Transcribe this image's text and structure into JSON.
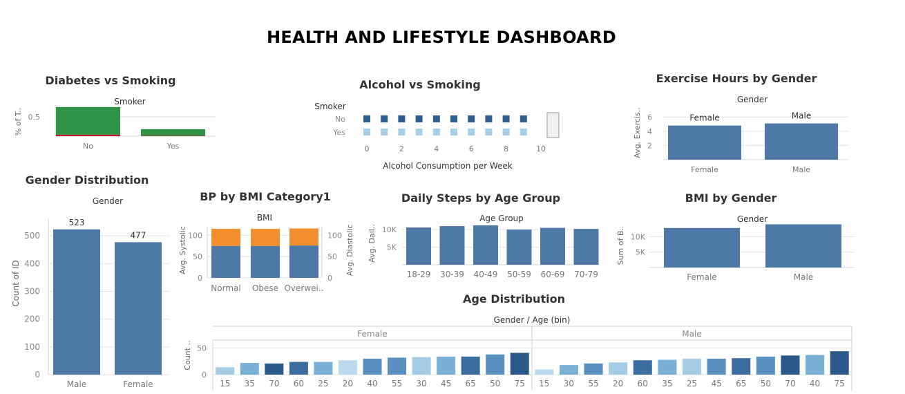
{
  "dashboard": {
    "title": "HEALTH AND LIFESTYLE DASHBOARD"
  },
  "colors": {
    "blue": "#4e79a7",
    "green": "#2e9445",
    "red": "#c8102e",
    "orange": "#f28e2b",
    "smoker_no": "#2e5d8e",
    "smoker_yes": "#a5cfe8",
    "age_palette": [
      "#bcdaef",
      "#a5cde6",
      "#7ab0d6",
      "#5a91c0",
      "#3b6e9f",
      "#2b5a8a"
    ]
  },
  "chart_data": [
    {
      "id": "diabetes_smoking",
      "type": "bar",
      "title": "Diabetes vs Smoking",
      "header": "Smoker",
      "ylabel": "% of T..",
      "ylim": [
        0,
        0.8
      ],
      "yticks": [
        "0.5"
      ],
      "categories": [
        "No",
        "Yes"
      ],
      "series": [
        {
          "values": [
            0.04,
            0.01
          ],
          "color": "#c8102e"
        },
        {
          "values": [
            0.71,
            0.17
          ],
          "color": "#2e9445"
        }
      ]
    },
    {
      "id": "alcohol_smoking",
      "type": "scatter",
      "title": "Alcohol vs Smoking",
      "row_header": "Smoker",
      "rows": [
        "No",
        "Yes"
      ],
      "xlabel": "Alcohol Consumption per Week",
      "xlim": [
        0,
        10
      ],
      "xticks": [
        "0",
        "2",
        "4",
        "6",
        "8",
        "10"
      ],
      "series": [
        {
          "name": "No",
          "x": [
            0,
            1,
            2,
            3,
            4,
            5,
            6,
            7,
            8,
            9
          ],
          "color": "#2e5d8e"
        },
        {
          "name": "Yes",
          "x": [
            0,
            1,
            2,
            3,
            4,
            5,
            6,
            7,
            8,
            9
          ],
          "color": "#a5cfe8"
        }
      ]
    },
    {
      "id": "exercise_gender",
      "type": "bar",
      "title": "Exercise Hours by Gender",
      "header": "Gender",
      "ylabel": "Avg. Exercis..",
      "ylim": [
        0,
        7
      ],
      "yticks": [
        "2",
        "4",
        "6"
      ],
      "categories": [
        "Female",
        "Male"
      ],
      "values": [
        4.8,
        5.1
      ],
      "data_labels": [
        "Female",
        "Male"
      ]
    },
    {
      "id": "gender_distribution",
      "type": "bar",
      "title": "Gender Distribution",
      "header": "Gender",
      "ylabel": "Count of ID",
      "ylim": [
        0,
        560
      ],
      "yticks": [
        "0",
        "100",
        "200",
        "300",
        "400",
        "500"
      ],
      "categories": [
        "Male",
        "Female"
      ],
      "values": [
        523,
        477
      ],
      "data_labels": [
        "523",
        "477"
      ]
    },
    {
      "id": "bp_bmi",
      "type": "bar",
      "title": "BP by BMI Category1",
      "header": "BMI",
      "ylabel_left": "Avg. Systolic",
      "ylabel_right": "Avg. Diastolic",
      "ylim": [
        0,
        120
      ],
      "yticks": [
        "0",
        "50",
        "100"
      ],
      "categories": [
        "Normal",
        "Obese",
        "Overwei.."
      ],
      "series": [
        {
          "values": [
            75,
            75,
            76
          ],
          "color": "#4e79a7"
        },
        {
          "values": [
            40,
            40,
            40
          ],
          "color": "#f28e2b"
        }
      ]
    },
    {
      "id": "steps_age",
      "type": "bar",
      "title": "Daily Steps by Age Group",
      "header": "Age Group",
      "ylabel": "Avg. Dail..",
      "ylim": [
        0,
        12000
      ],
      "yticks": [
        "5K",
        "10K"
      ],
      "categories": [
        "18-29",
        "30-39",
        "40-49",
        "50-59",
        "60-69",
        "70-79"
      ],
      "values": [
        10600,
        11000,
        11200,
        10000,
        10500,
        10200
      ]
    },
    {
      "id": "bmi_gender",
      "type": "bar",
      "title": "BMI by Gender",
      "header": "Gender",
      "ylabel": "Sum of B..",
      "ylim": [
        0,
        15000
      ],
      "yticks": [
        "5K",
        "10K"
      ],
      "categories": [
        "Female",
        "Male"
      ],
      "values": [
        12800,
        14000
      ]
    },
    {
      "id": "age_distribution",
      "type": "bar",
      "title": "Age Distribution",
      "header": "Gender  /  Age (bin)",
      "ylabel": "Count ..",
      "ylim": [
        0,
        65
      ],
      "yticks": [
        "0",
        "50"
      ],
      "panels": [
        {
          "name": "Female",
          "categories": [
            "15",
            "35",
            "70",
            "60",
            "25",
            "20",
            "40",
            "55",
            "30",
            "45",
            "65",
            "50",
            "75"
          ],
          "values": [
            14,
            22,
            21,
            24,
            24,
            27,
            30,
            32,
            33,
            34,
            34,
            38,
            41
          ],
          "shades": [
            1,
            2,
            5,
            4,
            2,
            0,
            3,
            3,
            1,
            2,
            4,
            3,
            5
          ]
        },
        {
          "name": "Male",
          "categories": [
            "15",
            "30",
            "55",
            "20",
            "60",
            "35",
            "25",
            "45",
            "65",
            "50",
            "70",
            "40",
            "75"
          ],
          "values": [
            10,
            18,
            21,
            23,
            27,
            28,
            30,
            30,
            31,
            34,
            36,
            37,
            44
          ],
          "shades": [
            0,
            2,
            3,
            1,
            4,
            2,
            1,
            3,
            4,
            3,
            5,
            2,
            5
          ]
        }
      ]
    }
  ]
}
